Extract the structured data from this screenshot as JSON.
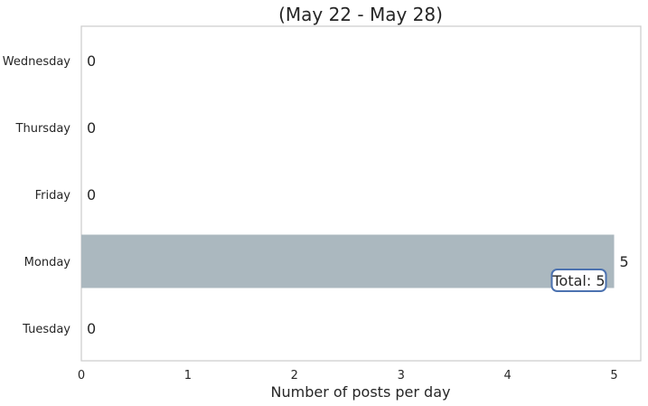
{
  "chart_data": {
    "type": "bar",
    "orientation": "horizontal",
    "title": "(May 22 - May 28)",
    "xlabel": "Number of posts per day",
    "ylabel": "",
    "categories": [
      "Wednesday",
      "Thursday",
      "Friday",
      "Monday",
      "Tuesday"
    ],
    "values": [
      0,
      0,
      0,
      5,
      0
    ],
    "data_labels": [
      "0",
      "0",
      "0",
      "5",
      "0"
    ],
    "xlim": [
      0,
      5.25
    ],
    "xticks": [
      0,
      1,
      2,
      3,
      4,
      5
    ],
    "xtick_labels": [
      "0",
      "1",
      "2",
      "3",
      "4",
      "5"
    ],
    "grid": false,
    "bar_color": "#abb8bf",
    "annotation": {
      "text": "Total: 5",
      "border_color": "#4c72b0"
    }
  }
}
